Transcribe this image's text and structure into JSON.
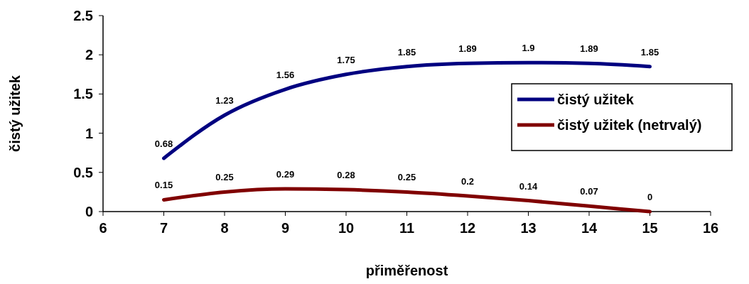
{
  "chart_data": {
    "type": "line",
    "xlabel": "přiměřenost",
    "ylabel": "čistý užitek",
    "x": [
      7,
      8,
      9,
      10,
      11,
      12,
      13,
      14,
      15
    ],
    "series": [
      {
        "name": "čistý užitek",
        "color": "#000080",
        "values": [
          0.68,
          1.23,
          1.56,
          1.75,
          1.85,
          1.89,
          1.9,
          1.89,
          1.85
        ]
      },
      {
        "name": "čistý užitek (netrvalý)",
        "color": "#800000",
        "values": [
          0.15,
          0.25,
          0.29,
          0.28,
          0.25,
          0.2,
          0.14,
          0.07,
          0
        ]
      }
    ],
    "xlim": [
      6,
      16
    ],
    "xticks": [
      6,
      7,
      8,
      9,
      10,
      11,
      12,
      13,
      14,
      15,
      16
    ],
    "ylim": [
      0,
      2.5
    ],
    "yticks": [
      0,
      0.5,
      1,
      1.5,
      2,
      2.5
    ],
    "data_labels": true,
    "legend": "right",
    "grid": false,
    "marker": "none",
    "line_style": "solid"
  }
}
